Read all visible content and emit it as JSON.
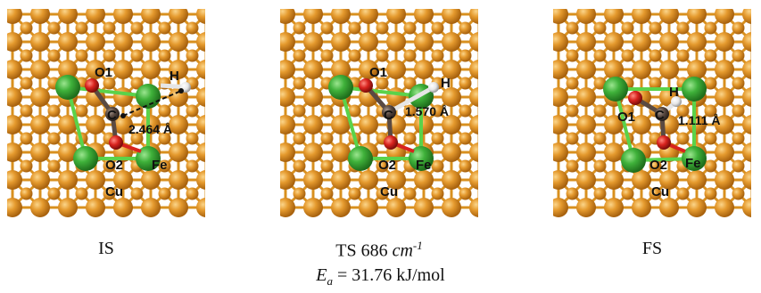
{
  "panels": [
    {
      "caption": "IS",
      "labels": {
        "o1": "O1",
        "h": "H",
        "c": "C",
        "o2": "O2",
        "fe": "Fe",
        "cu": "Cu"
      },
      "distance": "2.464 Å"
    },
    {
      "caption_main": "TS 686 ",
      "caption_unit": "cm",
      "caption_sup": "-1",
      "labels": {
        "o1": "O1",
        "h": "H",
        "c": "C",
        "o2": "O2",
        "fe": "Fe",
        "cu": "Cu"
      },
      "distance": "1.570 Å"
    },
    {
      "caption": "FS",
      "labels": {
        "o1": "O1",
        "h": "H",
        "c": "C",
        "o2": "O2",
        "fe": "Fe",
        "cu": "Cu"
      },
      "distance": "1.111 Å"
    }
  ],
  "activation_energy": {
    "symbol": "E",
    "subscript": "a",
    "value": " = 31.76 kJ/mol"
  },
  "colors": {
    "copper": "#e59a2e",
    "bond_copper": "#d8901f",
    "iron": "#3fb13a",
    "bond_iron": "#5bd24a",
    "oxygen": "#d8231e",
    "carbon": "#5a4a42",
    "hydrogen": "#e6e6e6"
  }
}
